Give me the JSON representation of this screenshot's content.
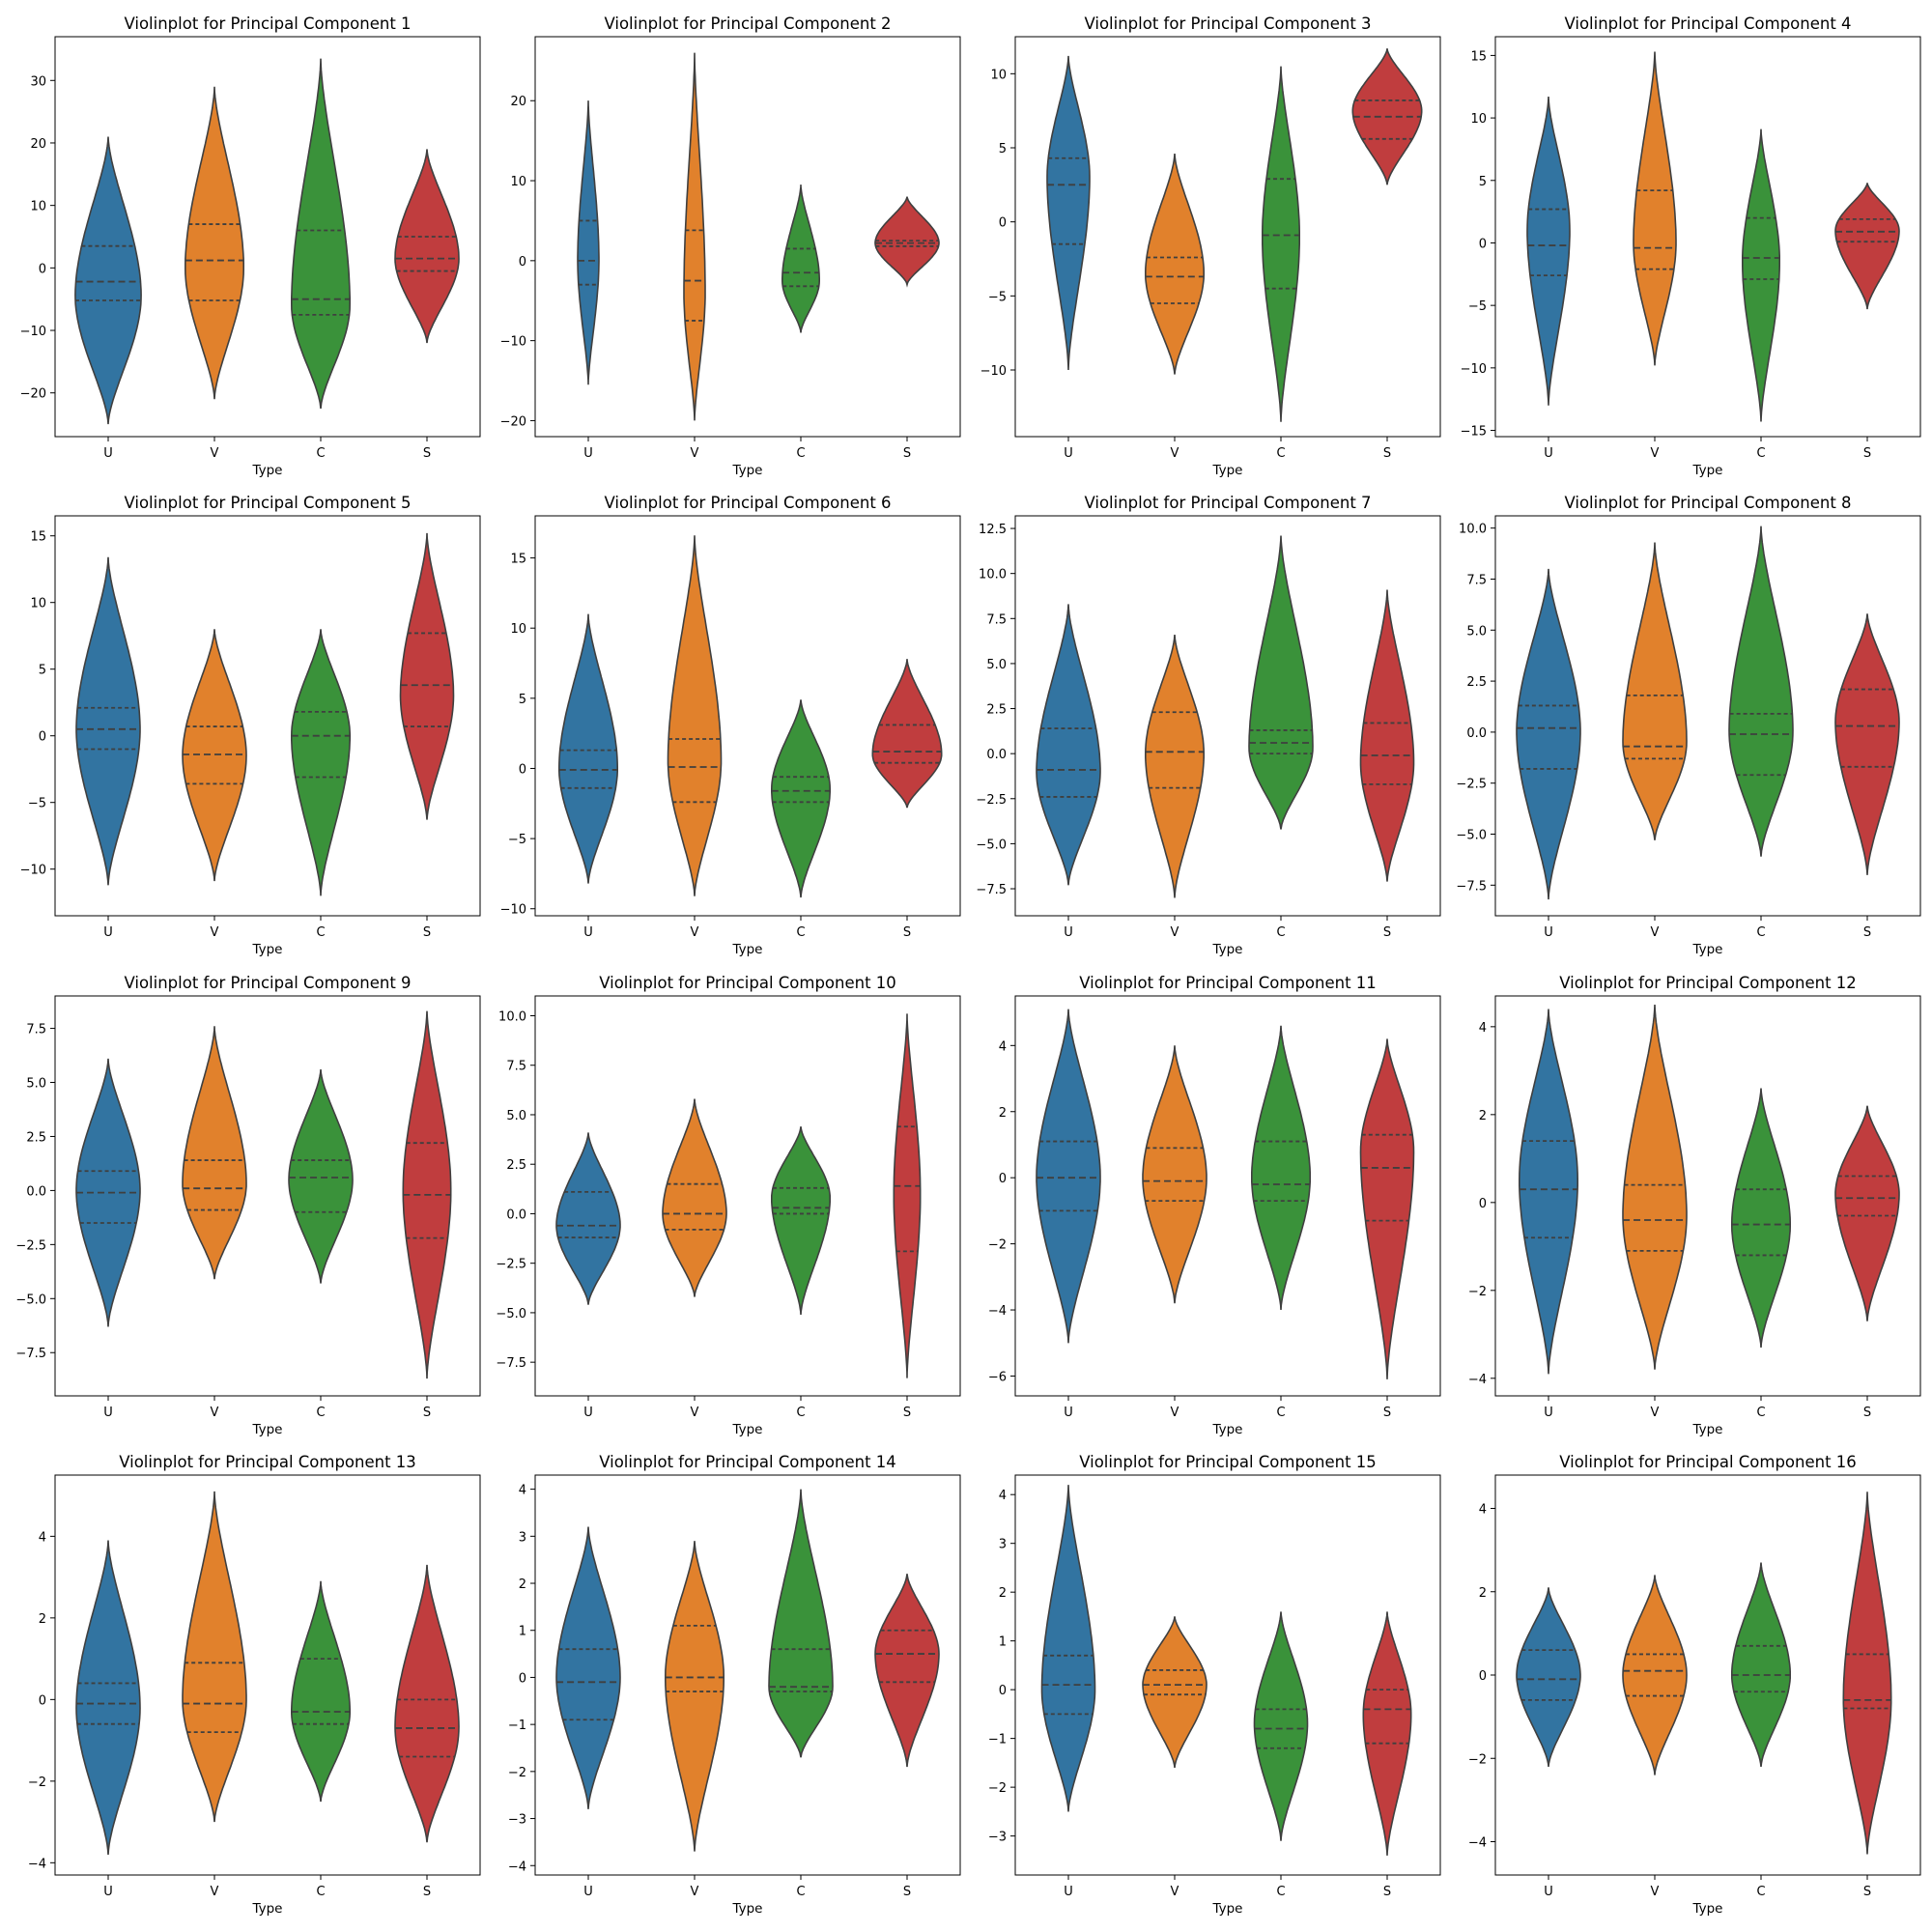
{
  "figure": {
    "palette": {
      "U": "#3274a1",
      "V": "#e1812c",
      "C": "#3a923a",
      "S": "#c03d3e",
      "edge": "#3f3f3f"
    }
  },
  "chart_data": [
    {
      "type": "violin",
      "title": "Violinplot for Principal Component 1",
      "xlabel": "Type",
      "ylabel": "",
      "categories": [
        "U",
        "V",
        "C",
        "S"
      ],
      "ylim": [
        -27,
        37
      ],
      "yticks": [
        -20,
        -10,
        0,
        10,
        20,
        30
      ],
      "violins": [
        {
          "name": "U",
          "min": -25,
          "max": 21,
          "q1": -5.2,
          "median": -2.2,
          "q3": 3.5,
          "mode": -4.5,
          "width": 0.62
        },
        {
          "name": "V",
          "min": -21,
          "max": 29,
          "q1": -5.2,
          "median": 1.2,
          "q3": 7.0,
          "mode": 0.0,
          "width": 0.55
        },
        {
          "name": "C",
          "min": -22.5,
          "max": 33.5,
          "q1": -7.5,
          "median": -5.0,
          "q3": 6.0,
          "mode": -6.0,
          "width": 0.55
        },
        {
          "name": "S",
          "min": -12,
          "max": 19,
          "q1": -0.5,
          "median": 1.5,
          "q3": 5.0,
          "mode": 1.5,
          "width": 0.6
        }
      ]
    },
    {
      "type": "violin",
      "title": "Violinplot for Principal Component 2",
      "xlabel": "Type",
      "ylabel": "",
      "categories": [
        "U",
        "V",
        "C",
        "S"
      ],
      "ylim": [
        -22,
        28
      ],
      "yticks": [
        -20,
        -10,
        0,
        10,
        20
      ],
      "violins": [
        {
          "name": "U",
          "min": -15.5,
          "max": 20,
          "q1": -3.0,
          "median": 0.0,
          "q3": 5.0,
          "mode": 0.0,
          "width": 0.2
        },
        {
          "name": "V",
          "min": -20,
          "max": 26,
          "q1": -7.5,
          "median": -2.5,
          "q3": 3.8,
          "mode": -4.0,
          "width": 0.2
        },
        {
          "name": "C",
          "min": -9,
          "max": 9.5,
          "q1": -3.2,
          "median": -1.5,
          "q3": 1.5,
          "mode": -2.5,
          "width": 0.35
        },
        {
          "name": "S",
          "min": -3,
          "max": 8,
          "q1": 1.8,
          "median": 2.2,
          "q3": 2.5,
          "mode": 2.2,
          "width": 0.6
        }
      ]
    },
    {
      "type": "violin",
      "title": "Violinplot for Principal Component 3",
      "xlabel": "Type",
      "ylabel": "",
      "categories": [
        "U",
        "V",
        "C",
        "S"
      ],
      "ylim": [
        -14.5,
        12.5
      ],
      "yticks": [
        -10,
        -5,
        0,
        5,
        10
      ],
      "violins": [
        {
          "name": "U",
          "min": -10,
          "max": 11.2,
          "q1": -1.5,
          "median": 2.5,
          "q3": 4.3,
          "mode": 3.0,
          "width": 0.4
        },
        {
          "name": "V",
          "min": -10.3,
          "max": 4.6,
          "q1": -5.5,
          "median": -3.7,
          "q3": -2.4,
          "mode": -3.5,
          "width": 0.55
        },
        {
          "name": "C",
          "min": -13.5,
          "max": 10.5,
          "q1": -4.5,
          "median": -0.9,
          "q3": 2.9,
          "mode": -1.0,
          "width": 0.35
        },
        {
          "name": "S",
          "min": 2.5,
          "max": 11.7,
          "q1": 5.6,
          "median": 7.1,
          "q3": 8.2,
          "mode": 7.5,
          "width": 0.65
        }
      ]
    },
    {
      "type": "violin",
      "title": "Violinplot for Principal Component 4",
      "xlabel": "Type",
      "ylabel": "",
      "categories": [
        "U",
        "V",
        "C",
        "S"
      ],
      "ylim": [
        -15.5,
        16.5
      ],
      "yticks": [
        -15,
        -10,
        -5,
        0,
        5,
        10,
        15
      ],
      "violins": [
        {
          "name": "U",
          "min": -13,
          "max": 11.7,
          "q1": -2.6,
          "median": -0.2,
          "q3": 2.7,
          "mode": 1.0,
          "width": 0.4
        },
        {
          "name": "V",
          "min": -9.8,
          "max": 15.3,
          "q1": -2.1,
          "median": -0.4,
          "q3": 4.2,
          "mode": 0.0,
          "width": 0.4
        },
        {
          "name": "C",
          "min": -14.3,
          "max": 9.1,
          "q1": -2.9,
          "median": -1.2,
          "q3": 2.0,
          "mode": -1.5,
          "width": 0.35
        },
        {
          "name": "S",
          "min": -5.3,
          "max": 4.8,
          "q1": 0.1,
          "median": 0.9,
          "q3": 1.9,
          "mode": 1.0,
          "width": 0.6
        }
      ]
    },
    {
      "type": "violin",
      "title": "Violinplot for Principal Component 5",
      "xlabel": "Type",
      "ylabel": "",
      "categories": [
        "U",
        "V",
        "C",
        "S"
      ],
      "ylim": [
        -13.5,
        16.5
      ],
      "yticks": [
        -10,
        -5,
        0,
        5,
        10,
        15
      ],
      "violins": [
        {
          "name": "U",
          "min": -11.2,
          "max": 13.4,
          "q1": -1.0,
          "median": 0.5,
          "q3": 2.1,
          "mode": 0.5,
          "width": 0.6
        },
        {
          "name": "V",
          "min": -10.9,
          "max": 8.0,
          "q1": -3.6,
          "median": -1.4,
          "q3": 0.7,
          "mode": -1.5,
          "width": 0.6
        },
        {
          "name": "C",
          "min": -12,
          "max": 8.0,
          "q1": -3.1,
          "median": 0.0,
          "q3": 1.8,
          "mode": 0.0,
          "width": 0.55
        },
        {
          "name": "S",
          "min": -6.3,
          "max": 15.2,
          "q1": 0.7,
          "median": 3.8,
          "q3": 7.7,
          "mode": 3.0,
          "width": 0.5
        }
      ]
    },
    {
      "type": "violin",
      "title": "Violinplot for Principal Component 6",
      "xlabel": "Type",
      "ylabel": "",
      "categories": [
        "U",
        "V",
        "C",
        "S"
      ],
      "ylim": [
        -10.5,
        18
      ],
      "yticks": [
        -10,
        -5,
        0,
        5,
        10,
        15
      ],
      "violins": [
        {
          "name": "U",
          "min": -8.2,
          "max": 11.0,
          "q1": -1.4,
          "median": -0.1,
          "q3": 1.3,
          "mode": 0.0,
          "width": 0.55
        },
        {
          "name": "V",
          "min": -9.1,
          "max": 16.6,
          "q1": -2.4,
          "median": 0.1,
          "q3": 2.1,
          "mode": 0.5,
          "width": 0.5
        },
        {
          "name": "C",
          "min": -9.2,
          "max": 4.9,
          "q1": -2.4,
          "median": -1.6,
          "q3": -0.6,
          "mode": -1.5,
          "width": 0.55
        },
        {
          "name": "S",
          "min": -2.8,
          "max": 7.8,
          "q1": 0.4,
          "median": 1.2,
          "q3": 3.1,
          "mode": 1.0,
          "width": 0.65
        }
      ]
    },
    {
      "type": "violin",
      "title": "Violinplot for Principal Component 7",
      "xlabel": "Type",
      "ylabel": "",
      "categories": [
        "U",
        "V",
        "C",
        "S"
      ],
      "ylim": [
        -9,
        13.2
      ],
      "yticks": [
        -7.5,
        -5.0,
        -2.5,
        0.0,
        2.5,
        5.0,
        7.5,
        10.0,
        12.5
      ],
      "violins": [
        {
          "name": "U",
          "min": -7.3,
          "max": 8.3,
          "q1": -2.4,
          "median": -0.9,
          "q3": 1.4,
          "mode": -1.0,
          "width": 0.6
        },
        {
          "name": "V",
          "min": -8.0,
          "max": 6.6,
          "q1": -1.9,
          "median": 0.1,
          "q3": 2.3,
          "mode": 0.0,
          "width": 0.55
        },
        {
          "name": "C",
          "min": -4.2,
          "max": 12.1,
          "q1": 0.0,
          "median": 0.6,
          "q3": 1.3,
          "mode": 0.3,
          "width": 0.6
        },
        {
          "name": "S",
          "min": -7.1,
          "max": 9.1,
          "q1": -1.7,
          "median": -0.1,
          "q3": 1.7,
          "mode": -0.5,
          "width": 0.5
        }
      ]
    },
    {
      "type": "violin",
      "title": "Violinplot for Principal Component 8",
      "xlabel": "Type",
      "ylabel": "",
      "categories": [
        "U",
        "V",
        "C",
        "S"
      ],
      "ylim": [
        -9,
        10.6
      ],
      "yticks": [
        -7.5,
        -5.0,
        -2.5,
        0.0,
        2.5,
        5.0,
        7.5,
        10.0
      ],
      "violins": [
        {
          "name": "U",
          "min": -8.2,
          "max": 8.0,
          "q1": -1.8,
          "median": 0.2,
          "q3": 1.3,
          "mode": 0.0,
          "width": 0.6
        },
        {
          "name": "V",
          "min": -5.3,
          "max": 9.3,
          "q1": -1.3,
          "median": -0.7,
          "q3": 1.8,
          "mode": -0.5,
          "width": 0.6
        },
        {
          "name": "C",
          "min": -6.1,
          "max": 10.1,
          "q1": -2.1,
          "median": -0.1,
          "q3": 0.9,
          "mode": 0.0,
          "width": 0.6
        },
        {
          "name": "S",
          "min": -7.0,
          "max": 5.8,
          "q1": -1.7,
          "median": 0.3,
          "q3": 2.1,
          "mode": 0.5,
          "width": 0.6
        }
      ]
    },
    {
      "type": "violin",
      "title": "Violinplot for Principal Component 9",
      "xlabel": "Type",
      "ylabel": "",
      "categories": [
        "U",
        "V",
        "C",
        "S"
      ],
      "ylim": [
        -9.5,
        9
      ],
      "yticks": [
        -7.5,
        -5.0,
        -2.5,
        0.0,
        2.5,
        5.0,
        7.5
      ],
      "violins": [
        {
          "name": "U",
          "min": -6.3,
          "max": 6.1,
          "q1": -1.5,
          "median": -0.1,
          "q3": 0.9,
          "mode": 0.0,
          "width": 0.6
        },
        {
          "name": "V",
          "min": -4.1,
          "max": 7.6,
          "q1": -0.9,
          "median": 0.1,
          "q3": 1.4,
          "mode": 0.3,
          "width": 0.6
        },
        {
          "name": "C",
          "min": -4.3,
          "max": 5.6,
          "q1": -1.0,
          "median": 0.6,
          "q3": 1.4,
          "mode": 0.5,
          "width": 0.6
        },
        {
          "name": "S",
          "min": -8.7,
          "max": 8.3,
          "q1": -2.2,
          "median": -0.2,
          "q3": 2.2,
          "mode": 0.0,
          "width": 0.45
        }
      ]
    },
    {
      "type": "violin",
      "title": "Violinplot for Principal Component 10",
      "xlabel": "Type",
      "ylabel": "",
      "categories": [
        "U",
        "V",
        "C",
        "S"
      ],
      "ylim": [
        -9.2,
        11
      ],
      "yticks": [
        -7.5,
        -5.0,
        -2.5,
        0.0,
        2.5,
        5.0,
        7.5,
        10.0
      ],
      "violins": [
        {
          "name": "U",
          "min": -4.6,
          "max": 4.1,
          "q1": -1.2,
          "median": -0.6,
          "q3": 1.1,
          "mode": -0.6,
          "width": 0.6
        },
        {
          "name": "V",
          "min": -4.2,
          "max": 5.8,
          "q1": -0.8,
          "median": 0.0,
          "q3": 1.5,
          "mode": 0.0,
          "width": 0.6
        },
        {
          "name": "C",
          "min": -5.1,
          "max": 4.4,
          "q1": 0.0,
          "median": 0.3,
          "q3": 1.3,
          "mode": 0.8,
          "width": 0.55
        },
        {
          "name": "S",
          "min": -8.3,
          "max": 10.1,
          "q1": -1.9,
          "median": 1.4,
          "q3": 4.4,
          "mode": 1.0,
          "width": 0.25
        }
      ]
    },
    {
      "type": "violin",
      "title": "Violinplot for Principal Component 11",
      "xlabel": "Type",
      "ylabel": "",
      "categories": [
        "U",
        "V",
        "C",
        "S"
      ],
      "ylim": [
        -6.6,
        5.5
      ],
      "yticks": [
        -6,
        -4,
        -2,
        0,
        2,
        4
      ],
      "violins": [
        {
          "name": "U",
          "min": -5.0,
          "max": 5.1,
          "q1": -1.0,
          "median": 0.0,
          "q3": 1.1,
          "mode": 0.0,
          "width": 0.6
        },
        {
          "name": "V",
          "min": -3.8,
          "max": 4.0,
          "q1": -0.7,
          "median": -0.1,
          "q3": 0.9,
          "mode": 0.0,
          "width": 0.6
        },
        {
          "name": "C",
          "min": -4.0,
          "max": 4.6,
          "q1": -0.7,
          "median": -0.2,
          "q3": 1.1,
          "mode": 0.0,
          "width": 0.55
        },
        {
          "name": "S",
          "min": -6.1,
          "max": 4.2,
          "q1": -1.3,
          "median": 0.3,
          "q3": 1.3,
          "mode": 0.8,
          "width": 0.5
        }
      ]
    },
    {
      "type": "violin",
      "title": "Violinplot for Principal Component 12",
      "xlabel": "Type",
      "ylabel": "",
      "categories": [
        "U",
        "V",
        "C",
        "S"
      ],
      "ylim": [
        -4.4,
        4.7
      ],
      "yticks": [
        -4,
        -2,
        0,
        2,
        4
      ],
      "violins": [
        {
          "name": "U",
          "min": -3.9,
          "max": 4.4,
          "q1": -0.8,
          "median": 0.3,
          "q3": 1.4,
          "mode": 0.5,
          "width": 0.55
        },
        {
          "name": "V",
          "min": -3.8,
          "max": 4.5,
          "q1": -1.1,
          "median": -0.4,
          "q3": 0.4,
          "mode": -0.3,
          "width": 0.6
        },
        {
          "name": "C",
          "min": -3.3,
          "max": 2.6,
          "q1": -1.2,
          "median": -0.5,
          "q3": 0.3,
          "mode": -0.5,
          "width": 0.55
        },
        {
          "name": "S",
          "min": -2.7,
          "max": 2.2,
          "q1": -0.3,
          "median": 0.1,
          "q3": 0.6,
          "mode": 0.2,
          "width": 0.6
        }
      ]
    },
    {
      "type": "violin",
      "title": "Violinplot for Principal Component 13",
      "xlabel": "Type",
      "ylabel": "",
      "categories": [
        "U",
        "V",
        "C",
        "S"
      ],
      "ylim": [
        -4.3,
        5.5
      ],
      "yticks": [
        -4,
        -2,
        0,
        2,
        4
      ],
      "violins": [
        {
          "name": "U",
          "min": -3.8,
          "max": 3.9,
          "q1": -0.6,
          "median": -0.1,
          "q3": 0.4,
          "mode": -0.2,
          "width": 0.6
        },
        {
          "name": "V",
          "min": -3.0,
          "max": 5.1,
          "q1": -0.8,
          "median": -0.1,
          "q3": 0.9,
          "mode": 0.0,
          "width": 0.6
        },
        {
          "name": "C",
          "min": -2.5,
          "max": 2.9,
          "q1": -0.6,
          "median": -0.3,
          "q3": 1.0,
          "mode": -0.3,
          "width": 0.55
        },
        {
          "name": "S",
          "min": -3.5,
          "max": 3.3,
          "q1": -1.4,
          "median": -0.7,
          "q3": 0.0,
          "mode": -0.7,
          "width": 0.6
        }
      ]
    },
    {
      "type": "violin",
      "title": "Violinplot for Principal Component 14",
      "xlabel": "Type",
      "ylabel": "",
      "categories": [
        "U",
        "V",
        "C",
        "S"
      ],
      "ylim": [
        -4.2,
        4.3
      ],
      "yticks": [
        -4,
        -3,
        -2,
        -1,
        0,
        1,
        2,
        3,
        4
      ],
      "violins": [
        {
          "name": "U",
          "min": -2.8,
          "max": 3.2,
          "q1": -0.9,
          "median": -0.1,
          "q3": 0.6,
          "mode": 0.0,
          "width": 0.6
        },
        {
          "name": "V",
          "min": -3.7,
          "max": 2.9,
          "q1": -0.3,
          "median": 0.0,
          "q3": 1.1,
          "mode": 0.0,
          "width": 0.55
        },
        {
          "name": "C",
          "min": -1.7,
          "max": 4.0,
          "q1": -0.3,
          "median": -0.2,
          "q3": 0.6,
          "mode": -0.2,
          "width": 0.6
        },
        {
          "name": "S",
          "min": -1.9,
          "max": 2.2,
          "q1": -0.1,
          "median": 0.5,
          "q3": 1.0,
          "mode": 0.5,
          "width": 0.6
        }
      ]
    },
    {
      "type": "violin",
      "title": "Violinplot for Principal Component 15",
      "xlabel": "Type",
      "ylabel": "",
      "categories": [
        "U",
        "V",
        "C",
        "S"
      ],
      "ylim": [
        -3.8,
        4.4
      ],
      "yticks": [
        -3,
        -2,
        -1,
        0,
        1,
        2,
        3,
        4
      ],
      "violins": [
        {
          "name": "U",
          "min": -2.5,
          "max": 4.2,
          "q1": -0.5,
          "median": 0.1,
          "q3": 0.7,
          "mode": 0.0,
          "width": 0.5
        },
        {
          "name": "V",
          "min": -1.6,
          "max": 1.5,
          "q1": -0.1,
          "median": 0.1,
          "q3": 0.4,
          "mode": 0.1,
          "width": 0.6
        },
        {
          "name": "C",
          "min": -3.1,
          "max": 1.6,
          "q1": -1.2,
          "median": -0.8,
          "q3": -0.4,
          "mode": -0.7,
          "width": 0.5
        },
        {
          "name": "S",
          "min": -3.4,
          "max": 1.6,
          "q1": -1.1,
          "median": -0.4,
          "q3": 0.0,
          "mode": -0.5,
          "width": 0.45
        }
      ]
    },
    {
      "type": "violin",
      "title": "Violinplot for Principal Component 16",
      "xlabel": "Type",
      "ylabel": "",
      "categories": [
        "U",
        "V",
        "C",
        "S"
      ],
      "ylim": [
        -4.8,
        4.8
      ],
      "yticks": [
        -4,
        -2,
        0,
        2,
        4
      ],
      "violins": [
        {
          "name": "U",
          "min": -2.2,
          "max": 2.1,
          "q1": -0.6,
          "median": -0.1,
          "q3": 0.6,
          "mode": 0.0,
          "width": 0.6
        },
        {
          "name": "V",
          "min": -2.4,
          "max": 2.4,
          "q1": -0.5,
          "median": 0.1,
          "q3": 0.5,
          "mode": 0.0,
          "width": 0.6
        },
        {
          "name": "C",
          "min": -2.2,
          "max": 2.7,
          "q1": -0.4,
          "median": 0.0,
          "q3": 0.7,
          "mode": 0.0,
          "width": 0.55
        },
        {
          "name": "S",
          "min": -4.3,
          "max": 4.4,
          "q1": -0.8,
          "median": -0.6,
          "q3": 0.5,
          "mode": -0.6,
          "width": 0.45
        }
      ]
    }
  ]
}
